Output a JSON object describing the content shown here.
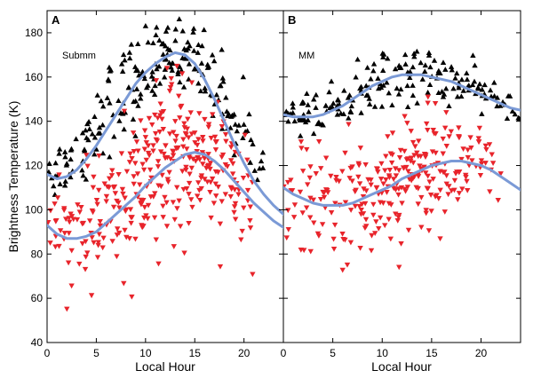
{
  "chart_data": [
    {
      "type": "scatter",
      "panel": "A",
      "label": "Submm",
      "xlabel": "Local Hour",
      "ylabel": "Brightness Temperature (K)",
      "xlim": [
        0,
        24
      ],
      "ylim": [
        40,
        190
      ],
      "xticks": [
        0,
        5,
        10,
        15,
        20
      ],
      "yticks": [
        40,
        60,
        80,
        100,
        120,
        140,
        160,
        180
      ],
      "grid": false,
      "series": [
        {
          "marker": "triangle-up",
          "color": "#000000",
          "cloud": [
            {
              "x": 0.5,
              "y": 118,
              "sd": 7,
              "n": 8
            },
            {
              "x": 1.5,
              "y": 120,
              "sd": 6,
              "n": 8
            },
            {
              "x": 2.5,
              "y": 123,
              "sd": 7,
              "n": 8
            },
            {
              "x": 3.5,
              "y": 128,
              "sd": 8,
              "n": 8
            },
            {
              "x": 4.5,
              "y": 136,
              "sd": 9,
              "n": 9
            },
            {
              "x": 5.5,
              "y": 142,
              "sd": 9,
              "n": 9
            },
            {
              "x": 6.5,
              "y": 148,
              "sd": 10,
              "n": 10
            },
            {
              "x": 7.5,
              "y": 152,
              "sd": 10,
              "n": 11
            },
            {
              "x": 8.5,
              "y": 156,
              "sd": 10,
              "n": 11
            },
            {
              "x": 9.5,
              "y": 160,
              "sd": 9,
              "n": 12
            },
            {
              "x": 10.5,
              "y": 164,
              "sd": 9,
              "n": 12
            },
            {
              "x": 11.5,
              "y": 167,
              "sd": 8,
              "n": 12
            },
            {
              "x": 12.5,
              "y": 169,
              "sd": 8,
              "n": 12
            },
            {
              "x": 13.5,
              "y": 171,
              "sd": 7,
              "n": 12
            },
            {
              "x": 14.5,
              "y": 170,
              "sd": 7,
              "n": 12
            },
            {
              "x": 15.5,
              "y": 166,
              "sd": 8,
              "n": 11
            },
            {
              "x": 16.5,
              "y": 161,
              "sd": 8,
              "n": 10
            },
            {
              "x": 17.5,
              "y": 153,
              "sd": 9,
              "n": 10
            },
            {
              "x": 18.5,
              "y": 145,
              "sd": 9,
              "n": 9
            },
            {
              "x": 19.5,
              "y": 137,
              "sd": 8,
              "n": 8
            },
            {
              "x": 20.5,
              "y": 130,
              "sd": 7,
              "n": 7
            },
            {
              "x": 21.5,
              "y": 124,
              "sd": 6,
              "n": 6
            }
          ]
        },
        {
          "marker": "triangle-down",
          "color": "#e8242b",
          "cloud": [
            {
              "x": 0.5,
              "y": 94,
              "sd": 8,
              "n": 8
            },
            {
              "x": 1.5,
              "y": 92,
              "sd": 9,
              "n": 9
            },
            {
              "x": 2.5,
              "y": 90,
              "sd": 10,
              "n": 10
            },
            {
              "x": 3.5,
              "y": 90,
              "sd": 11,
              "n": 11
            },
            {
              "x": 4.5,
              "y": 92,
              "sd": 12,
              "n": 12
            },
            {
              "x": 5.5,
              "y": 95,
              "sd": 13,
              "n": 13
            },
            {
              "x": 6.5,
              "y": 99,
              "sd": 14,
              "n": 14
            },
            {
              "x": 7.5,
              "y": 103,
              "sd": 15,
              "n": 16
            },
            {
              "x": 8.5,
              "y": 107,
              "sd": 16,
              "n": 18
            },
            {
              "x": 9.5,
              "y": 111,
              "sd": 17,
              "n": 20
            },
            {
              "x": 10.5,
              "y": 115,
              "sd": 18,
              "n": 22
            },
            {
              "x": 11.5,
              "y": 119,
              "sd": 18,
              "n": 24
            },
            {
              "x": 12.5,
              "y": 122,
              "sd": 18,
              "n": 24
            },
            {
              "x": 13.5,
              "y": 124,
              "sd": 17,
              "n": 24
            },
            {
              "x": 14.5,
              "y": 125,
              "sd": 17,
              "n": 23
            },
            {
              "x": 15.5,
              "y": 124,
              "sd": 16,
              "n": 22
            },
            {
              "x": 16.5,
              "y": 121,
              "sd": 16,
              "n": 20
            },
            {
              "x": 17.5,
              "y": 117,
              "sd": 15,
              "n": 18
            },
            {
              "x": 18.5,
              "y": 112,
              "sd": 14,
              "n": 16
            },
            {
              "x": 19.5,
              "y": 106,
              "sd": 13,
              "n": 13
            },
            {
              "x": 20.5,
              "y": 100,
              "sd": 11,
              "n": 10
            }
          ]
        }
      ],
      "fits": [
        {
          "color": "#7b9ad6",
          "x": [
            0,
            1,
            2,
            3,
            4,
            5,
            6,
            7,
            8,
            9,
            10,
            11,
            12,
            13,
            14,
            15,
            16,
            17,
            18,
            19,
            20,
            21,
            22,
            23,
            24
          ],
          "y": [
            116,
            114,
            115,
            118,
            123,
            129,
            136,
            143,
            150,
            157,
            162,
            166,
            169,
            171,
            170,
            166,
            159,
            150,
            140,
            130,
            121,
            113,
            107,
            102,
            98
          ]
        },
        {
          "color": "#7b9ad6",
          "x": [
            0,
            1,
            2,
            3,
            4,
            5,
            6,
            7,
            8,
            9,
            10,
            11,
            12,
            13,
            14,
            15,
            16,
            17,
            18,
            19,
            20,
            21,
            22,
            23,
            24
          ],
          "y": [
            93,
            89,
            87,
            87,
            88,
            90,
            94,
            98,
            102,
            106,
            111,
            115,
            119,
            122,
            125,
            126,
            125,
            122,
            118,
            113,
            108,
            103,
            99,
            95,
            92
          ]
        }
      ]
    },
    {
      "type": "scatter",
      "panel": "B",
      "label": "MM",
      "xlabel": "Local Hour",
      "ylabel": "",
      "xlim": [
        0,
        24
      ],
      "ylim": [
        40,
        190
      ],
      "xticks": [
        0,
        5,
        10,
        15,
        20
      ],
      "yticks": [
        40,
        60,
        80,
        100,
        120,
        140,
        160,
        180
      ],
      "grid": false,
      "series": [
        {
          "marker": "triangle-up",
          "color": "#000000",
          "cloud": [
            {
              "x": 0.5,
              "y": 144,
              "sd": 4,
              "n": 8
            },
            {
              "x": 1.5,
              "y": 143,
              "sd": 4,
              "n": 8
            },
            {
              "x": 2.5,
              "y": 143,
              "sd": 4,
              "n": 8
            },
            {
              "x": 3.5,
              "y": 144,
              "sd": 5,
              "n": 8
            },
            {
              "x": 4.5,
              "y": 146,
              "sd": 5,
              "n": 8
            },
            {
              "x": 5.5,
              "y": 148,
              "sd": 5,
              "n": 8
            },
            {
              "x": 6.5,
              "y": 150,
              "sd": 5,
              "n": 8
            },
            {
              "x": 7.5,
              "y": 153,
              "sd": 6,
              "n": 8
            },
            {
              "x": 8.5,
              "y": 155,
              "sd": 6,
              "n": 8
            },
            {
              "x": 9.5,
              "y": 157,
              "sd": 7,
              "n": 8
            },
            {
              "x": 10.5,
              "y": 159,
              "sd": 7,
              "n": 8
            },
            {
              "x": 11.5,
              "y": 160,
              "sd": 7,
              "n": 8
            },
            {
              "x": 12.5,
              "y": 161,
              "sd": 7,
              "n": 8
            },
            {
              "x": 13.5,
              "y": 161,
              "sd": 7,
              "n": 8
            },
            {
              "x": 14.5,
              "y": 161,
              "sd": 6,
              "n": 8
            },
            {
              "x": 15.5,
              "y": 160,
              "sd": 6,
              "n": 8
            },
            {
              "x": 16.5,
              "y": 159,
              "sd": 5,
              "n": 8
            },
            {
              "x": 17.5,
              "y": 158,
              "sd": 5,
              "n": 8
            },
            {
              "x": 18.5,
              "y": 156,
              "sd": 5,
              "n": 8
            },
            {
              "x": 19.5,
              "y": 154,
              "sd": 5,
              "n": 8
            },
            {
              "x": 20.5,
              "y": 152,
              "sd": 5,
              "n": 7
            },
            {
              "x": 21.5,
              "y": 150,
              "sd": 5,
              "n": 6
            },
            {
              "x": 22.5,
              "y": 148,
              "sd": 4,
              "n": 5
            },
            {
              "x": 23.5,
              "y": 146,
              "sd": 4,
              "n": 4
            }
          ]
        },
        {
          "marker": "triangle-down",
          "color": "#e8242b",
          "cloud": [
            {
              "x": 0.5,
              "y": 107,
              "sd": 10,
              "n": 8
            },
            {
              "x": 1.5,
              "y": 105,
              "sd": 11,
              "n": 8
            },
            {
              "x": 2.5,
              "y": 103,
              "sd": 12,
              "n": 9
            },
            {
              "x": 3.5,
              "y": 102,
              "sd": 13,
              "n": 9
            },
            {
              "x": 4.5,
              "y": 102,
              "sd": 14,
              "n": 10
            },
            {
              "x": 5.5,
              "y": 102,
              "sd": 14,
              "n": 11
            },
            {
              "x": 6.5,
              "y": 103,
              "sd": 14,
              "n": 12
            },
            {
              "x": 7.5,
              "y": 104,
              "sd": 14,
              "n": 13
            },
            {
              "x": 8.5,
              "y": 106,
              "sd": 14,
              "n": 14
            },
            {
              "x": 9.5,
              "y": 108,
              "sd": 14,
              "n": 16
            },
            {
              "x": 10.5,
              "y": 111,
              "sd": 14,
              "n": 18
            },
            {
              "x": 11.5,
              "y": 114,
              "sd": 14,
              "n": 20
            },
            {
              "x": 12.5,
              "y": 116,
              "sd": 14,
              "n": 20
            },
            {
              "x": 13.5,
              "y": 118,
              "sd": 13,
              "n": 20
            },
            {
              "x": 14.5,
              "y": 120,
              "sd": 13,
              "n": 19
            },
            {
              "x": 15.5,
              "y": 121,
              "sd": 13,
              "n": 17
            },
            {
              "x": 16.5,
              "y": 122,
              "sd": 12,
              "n": 15
            },
            {
              "x": 17.5,
              "y": 121,
              "sd": 12,
              "n": 13
            },
            {
              "x": 18.5,
              "y": 120,
              "sd": 11,
              "n": 11
            },
            {
              "x": 19.5,
              "y": 119,
              "sd": 10,
              "n": 9
            },
            {
              "x": 20.5,
              "y": 117,
              "sd": 9,
              "n": 7
            },
            {
              "x": 21.5,
              "y": 115,
              "sd": 8,
              "n": 5
            }
          ]
        }
      ],
      "fits": [
        {
          "color": "#7b9ad6",
          "x": [
            0,
            1,
            2,
            3,
            4,
            5,
            6,
            7,
            8,
            9,
            10,
            11,
            12,
            13,
            14,
            15,
            16,
            17,
            18,
            19,
            20,
            21,
            22,
            23,
            24
          ],
          "y": [
            143,
            142,
            142,
            142,
            143,
            145,
            147,
            150,
            153,
            156,
            158,
            160,
            161,
            161,
            161,
            160,
            159,
            158,
            156,
            154,
            152,
            150,
            148,
            146,
            145
          ]
        },
        {
          "color": "#7b9ad6",
          "x": [
            0,
            1,
            2,
            3,
            4,
            5,
            6,
            7,
            8,
            9,
            10,
            11,
            12,
            13,
            14,
            15,
            16,
            17,
            18,
            19,
            20,
            21,
            22,
            23,
            24
          ],
          "y": [
            110,
            107,
            105,
            103,
            102,
            102,
            102,
            103,
            105,
            107,
            109,
            111,
            114,
            116,
            118,
            120,
            121,
            122,
            122,
            121,
            120,
            118,
            115,
            112,
            109
          ]
        }
      ]
    }
  ]
}
